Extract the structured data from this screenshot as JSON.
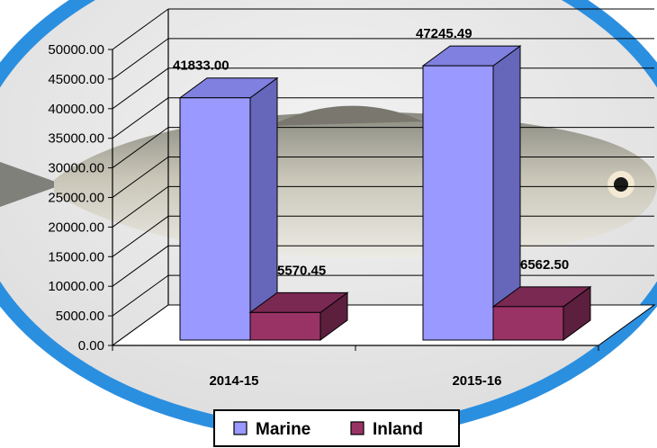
{
  "chart_data": {
    "type": "bar",
    "title": "",
    "xlabel": "",
    "ylabel": "",
    "categories": [
      "2014-15",
      "2015-16"
    ],
    "series": [
      {
        "name": "Marine",
        "values": [
          41833.0,
          47245.49
        ],
        "data_labels": [
          "41833.00",
          "47245.49"
        ]
      },
      {
        "name": "Inland",
        "values": [
          5570.45,
          6562.5
        ],
        "data_labels": [
          "5570.45",
          "6562.50"
        ]
      }
    ],
    "ylim": [
      0,
      50000
    ],
    "yticks": [
      "0.00",
      "5000.00",
      "10000.00",
      "15000.00",
      "20000.00",
      "25000.00",
      "30000.00",
      "35000.00",
      "40000.00",
      "45000.00",
      "50000.00"
    ],
    "grid": true,
    "three_d": true,
    "legend": {
      "position": "bottom"
    },
    "colors": {
      "marine_front": "#9999ff",
      "marine_side": "#6666bb",
      "marine_top": "#8080e0",
      "inland_front": "#993366",
      "inland_side": "#5c1f3d",
      "inland_top": "#7a2952",
      "ring": "#2b8fe0",
      "floor": "#ffffff"
    }
  }
}
